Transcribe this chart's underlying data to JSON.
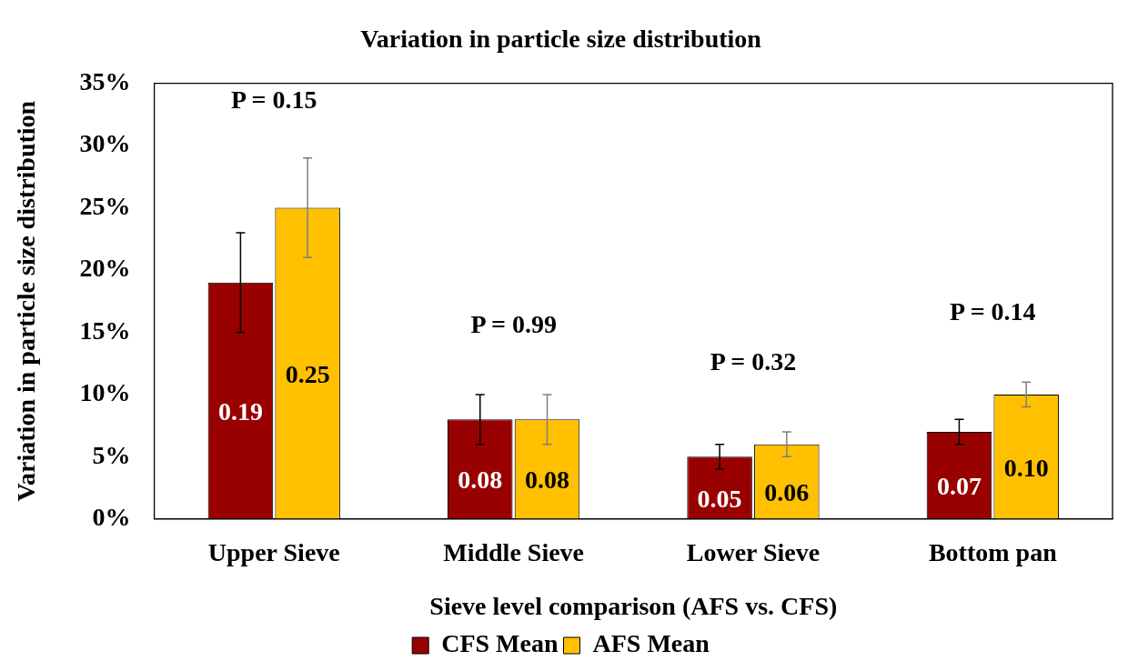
{
  "chart_data": {
    "type": "bar",
    "title": "Variation in particle size distribution",
    "xlabel": "Sieve level comparison (AFS vs. CFS)",
    "ylabel": "Variation in particle size distribution",
    "categories": [
      "Upper Sieve",
      "Middle Sieve",
      "Lower Sieve",
      "Bottom pan"
    ],
    "series": [
      {
        "name": "CFS Mean",
        "color": "#990000",
        "values": [
          0.19,
          0.08,
          0.05,
          0.07
        ],
        "errors": [
          0.04,
          0.02,
          0.01,
          0.01
        ],
        "value_labels": [
          "0.19",
          "0.08",
          "0.05",
          "0.07"
        ]
      },
      {
        "name": "AFS Mean",
        "color": "#ffc000",
        "values": [
          0.25,
          0.08,
          0.06,
          0.1
        ],
        "errors": [
          0.04,
          0.02,
          0.01,
          0.01
        ],
        "value_labels": [
          "0.25",
          "0.08",
          "0.06",
          "0.10"
        ]
      }
    ],
    "ylim": [
      0,
      0.35
    ],
    "yticks": [
      {
        "value": 0,
        "label": "0%"
      },
      {
        "value": 0.05,
        "label": "5%"
      },
      {
        "value": 0.1,
        "label": "10%"
      },
      {
        "value": 0.15,
        "label": "15%"
      },
      {
        "value": 0.2,
        "label": "20%"
      },
      {
        "value": 0.25,
        "label": "25%"
      },
      {
        "value": 0.3,
        "label": "30%"
      },
      {
        "value": 0.35,
        "label": "35%"
      }
    ],
    "annotations": [
      "P = 0.15",
      "P = 0.99",
      "P = 0.32",
      "P = 0.14"
    ],
    "grid": false,
    "legend": "bottom"
  }
}
